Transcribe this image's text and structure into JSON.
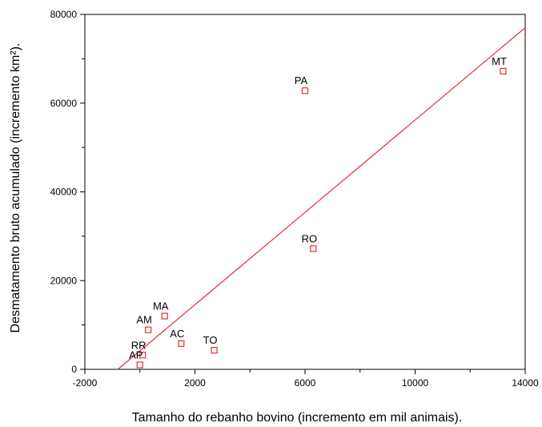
{
  "chart_data": {
    "type": "scatter",
    "title": "",
    "xlabel": "Tamanho do rebanho bovino (incremento em mil animais).",
    "ylabel": "Desmatamento bruto acumulado (incremento km²).",
    "xlim": [
      -2000,
      14000
    ],
    "ylim": [
      0,
      80000
    ],
    "x_ticks": [
      "-2000",
      "2000",
      "6000",
      "10000",
      "14000"
    ],
    "x_tick_values": [
      -2000,
      2000,
      6000,
      10000,
      14000
    ],
    "x_minor_tick_values": [
      0,
      4000,
      8000,
      12000
    ],
    "y_ticks": [
      "0",
      "20000",
      "40000",
      "60000",
      "80000"
    ],
    "y_tick_values": [
      0,
      20000,
      40000,
      60000,
      80000
    ],
    "y_minor_tick_values": [
      10000,
      30000,
      50000,
      70000
    ],
    "grid": false,
    "marker": "open-square",
    "marker_color": "#e0303a",
    "line_color": "#e0303a",
    "points": [
      {
        "label": "MT",
        "x": 13200,
        "y": 67200
      },
      {
        "label": "PA",
        "x": 6000,
        "y": 62800
      },
      {
        "label": "RO",
        "x": 6300,
        "y": 27200
      },
      {
        "label": "MA",
        "x": 900,
        "y": 12000
      },
      {
        "label": "AM",
        "x": 300,
        "y": 8900
      },
      {
        "label": "AC",
        "x": 1500,
        "y": 5800
      },
      {
        "label": "TO",
        "x": 2700,
        "y": 4300
      },
      {
        "label": "RR",
        "x": 100,
        "y": 3200
      },
      {
        "label": "AP",
        "x": 0,
        "y": 1000
      }
    ],
    "fit_line": {
      "x": [
        -800,
        14000
      ],
      "y_at_x": [
        0,
        77000
      ]
    }
  }
}
